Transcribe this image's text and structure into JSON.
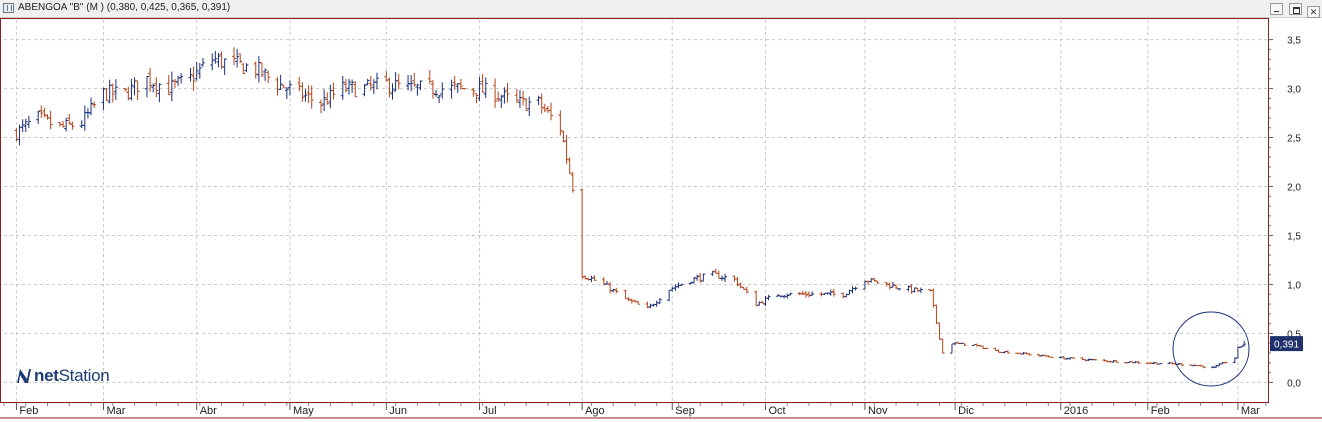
{
  "window": {
    "title": "ABENGOA \"B\" (M ) (0,380, 0,425, 0,365, 0,391)",
    "buttons": [
      "minimize",
      "restore",
      "close"
    ]
  },
  "logo": {
    "text_bold": "net",
    "text_regular": "Station",
    "icon": "netstation-n-logo"
  },
  "colors": {
    "up": "#1a2f78",
    "down": "#b44418",
    "grid": "#c8c8c8",
    "frame": "#8a2020",
    "last_label_bg": "#20306a",
    "highlight": "#1a2f78"
  },
  "chart_data": {
    "type": "ohlc",
    "title": "ABENGOA \"B\"",
    "ylim": [
      -0.2,
      3.7
    ],
    "y_ticks": [
      "0,0",
      "0,5",
      "1,0",
      "1,5",
      "2,0",
      "2,5",
      "3,0",
      "3,5"
    ],
    "y_tick_values": [
      0.0,
      0.5,
      1.0,
      1.5,
      2.0,
      2.5,
      3.0,
      3.5
    ],
    "x_labels": [
      "Feb",
      "Mar",
      "Abr",
      "May",
      "Jun",
      "Jul",
      "Ago",
      "Sep",
      "Oct",
      "Nov",
      "Dic",
      "2016",
      "Feb",
      "Mar"
    ],
    "x_label_dates": [
      "2015-02-02",
      "2015-03-02",
      "2015-04-01",
      "2015-05-01",
      "2015-06-01",
      "2015-07-01",
      "2015-08-03",
      "2015-09-01",
      "2015-10-01",
      "2015-11-02",
      "2015-12-01",
      "2016-01-04",
      "2016-02-01",
      "2016-03-01"
    ],
    "last_price": 0.391,
    "last_price_label": "0,391",
    "last_bar": {
      "open": 0.38,
      "high": 0.425,
      "low": 0.365,
      "close": 0.391
    },
    "grid": true,
    "annotation": "circle around the last bars (Feb–Mar 2016)",
    "close_points": [
      [
        "2015-02-02",
        2.55
      ],
      [
        "2015-02-09",
        2.7
      ],
      [
        "2015-02-16",
        2.6
      ],
      [
        "2015-02-23",
        2.65
      ],
      [
        "2015-03-02",
        2.95
      ],
      [
        "2015-03-09",
        2.95
      ],
      [
        "2015-03-16",
        3.1
      ],
      [
        "2015-03-23",
        3.0
      ],
      [
        "2015-03-30",
        3.1
      ],
      [
        "2015-04-06",
        3.3
      ],
      [
        "2015-04-13",
        3.25
      ],
      [
        "2015-04-20",
        3.2
      ],
      [
        "2015-04-27",
        3.05
      ],
      [
        "2015-05-04",
        2.95
      ],
      [
        "2015-05-11",
        2.85
      ],
      [
        "2015-05-18",
        3.0
      ],
      [
        "2015-05-25",
        3.0
      ],
      [
        "2015-06-01",
        3.05
      ],
      [
        "2015-06-08",
        3.0
      ],
      [
        "2015-06-15",
        3.0
      ],
      [
        "2015-06-22",
        3.0
      ],
      [
        "2015-06-29",
        3.0
      ],
      [
        "2015-07-06",
        2.95
      ],
      [
        "2015-07-13",
        2.85
      ],
      [
        "2015-07-20",
        2.85
      ],
      [
        "2015-07-27",
        2.6
      ],
      [
        "2015-07-31",
        2.0
      ],
      [
        "2015-08-03",
        1.1
      ],
      [
        "2015-08-10",
        1.0
      ],
      [
        "2015-08-17",
        0.85
      ],
      [
        "2015-08-24",
        0.75
      ],
      [
        "2015-08-31",
        0.95
      ],
      [
        "2015-09-07",
        1.05
      ],
      [
        "2015-09-14",
        1.1
      ],
      [
        "2015-09-21",
        1.05
      ],
      [
        "2015-09-28",
        0.8
      ],
      [
        "2015-10-05",
        0.9
      ],
      [
        "2015-10-12",
        0.9
      ],
      [
        "2015-10-19",
        0.9
      ],
      [
        "2015-10-26",
        0.9
      ],
      [
        "2015-11-02",
        1.05
      ],
      [
        "2015-11-09",
        1.0
      ],
      [
        "2015-11-16",
        0.95
      ],
      [
        "2015-11-23",
        0.92
      ],
      [
        "2015-11-27",
        0.3
      ],
      [
        "2015-11-30",
        0.4
      ],
      [
        "2015-12-07",
        0.38
      ],
      [
        "2015-12-14",
        0.32
      ],
      [
        "2015-12-21",
        0.3
      ],
      [
        "2016-01-04",
        0.25
      ],
      [
        "2016-01-18",
        0.22
      ],
      [
        "2016-02-01",
        0.2
      ],
      [
        "2016-02-15",
        0.18
      ],
      [
        "2016-02-22",
        0.15
      ],
      [
        "2016-02-29",
        0.25
      ],
      [
        "2016-03-01",
        0.35
      ],
      [
        "2016-03-03",
        0.391
      ]
    ]
  }
}
